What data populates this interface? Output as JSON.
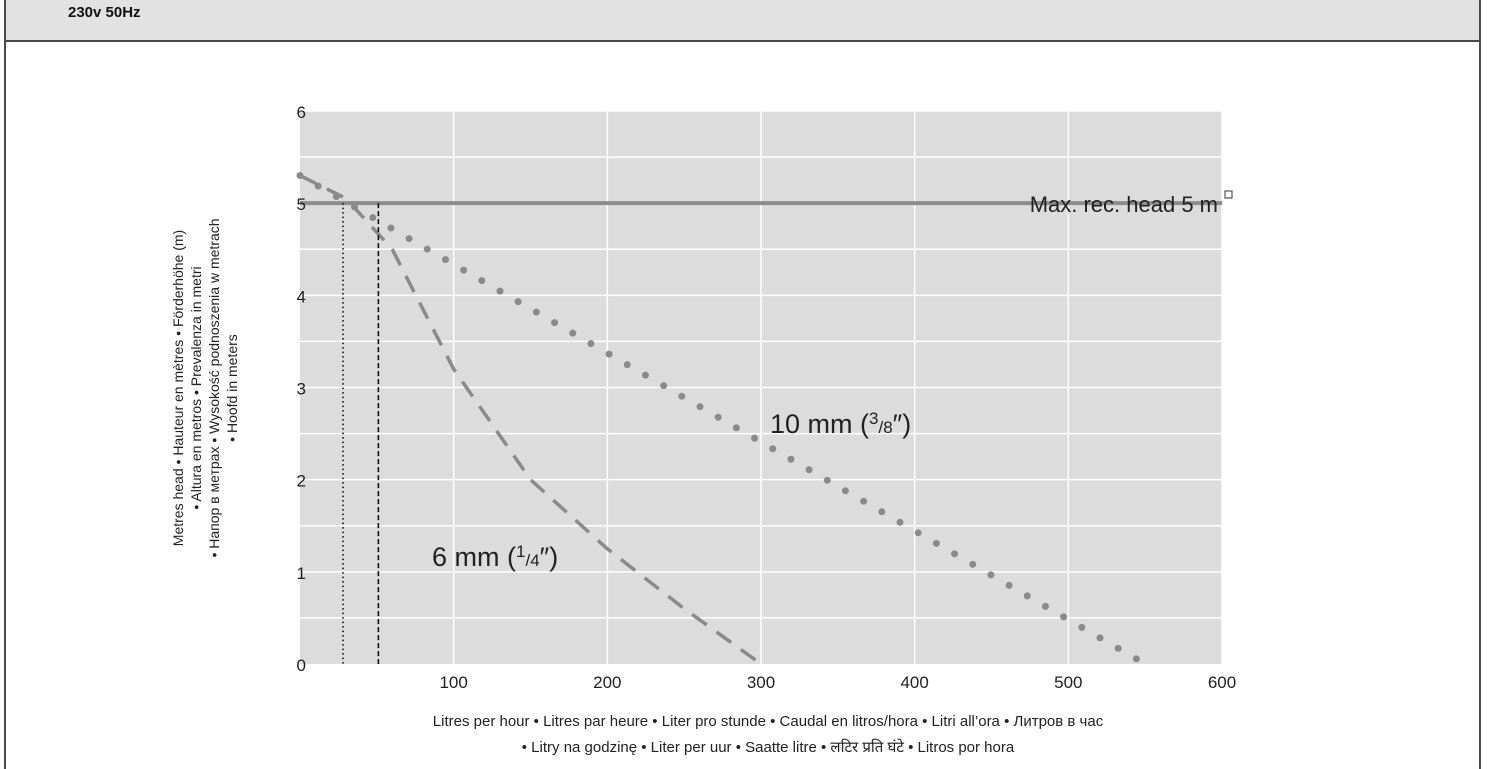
{
  "header": {
    "spec_label": "230v  50Hz"
  },
  "chart_data": {
    "type": "line",
    "xlim": [
      0,
      600
    ],
    "ylim": [
      0,
      6
    ],
    "x_ticks": [
      "100",
      "200",
      "300",
      "400",
      "500",
      "600"
    ],
    "y_ticks": [
      "0",
      "1",
      "2",
      "3",
      "4",
      "5",
      "6"
    ],
    "grid": true,
    "ylabel_lines": [
      "Metres head • Hauteur en mètres • Förderhöhe (m)",
      "• Altura en metros • Prevalenza in metri",
      "• Напор в метрах • Wysokość podnoszenia w metrach",
      "• Hoofd in meters"
    ],
    "xlabel_lines": [
      "Litres per hour • Litres par heure • Liter pro stunde • Caudal en litros/hora • Litri all’ora  • Литров в час",
      "• Litry na godzinę  • Liter per uur • Saatte litre • लटिर प्रति घंटे • Litros por hora"
    ],
    "reference_line": {
      "y": 5,
      "label": "Max. rec. head 5 m"
    },
    "series": [
      {
        "name": "10 mm (3/8″)",
        "name_main": "10 mm (",
        "name_sup": "3",
        "name_sub": "/8",
        "name_end": "″)",
        "style": "dotted",
        "x": [
          0,
          550
        ],
        "y": [
          5.3,
          0
        ]
      },
      {
        "name": "6 mm (1/4″)",
        "name_main": "6 mm (",
        "name_sup": "1",
        "name_sub": "/4",
        "name_end": "″)",
        "style": "dashed",
        "x": [
          0,
          30,
          60,
          100,
          150,
          200,
          250,
          300
        ],
        "y": [
          5.3,
          5.05,
          4.5,
          3.2,
          2.0,
          1.25,
          0.6,
          0
        ]
      }
    ],
    "markers": [
      {
        "x": 28,
        "style": "dotted"
      },
      {
        "x": 51,
        "style": "dashed"
      }
    ],
    "colors": {
      "plot_bg": "#dcdcdc",
      "grid": "#ffffff",
      "series": "#8a8a8a",
      "reference": "#8c8c8c",
      "marker": "#111111"
    }
  }
}
